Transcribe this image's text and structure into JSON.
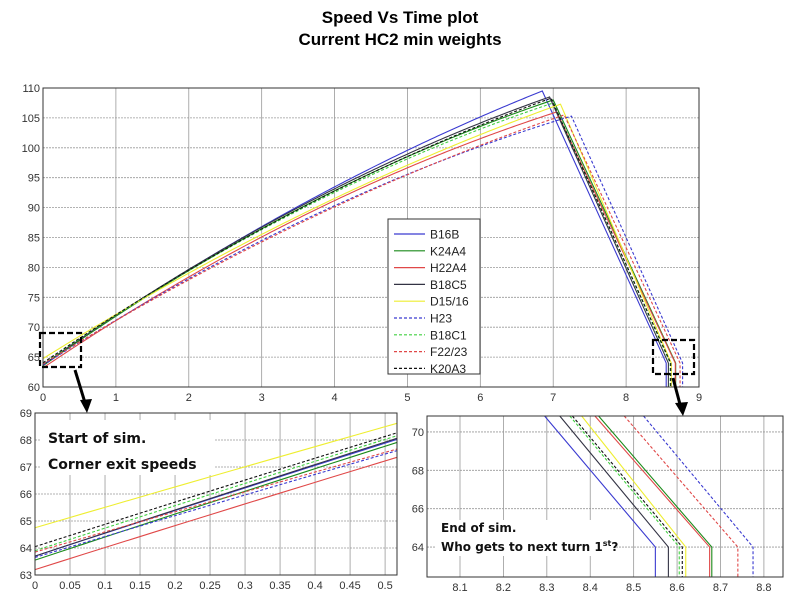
{
  "chart_data": {
    "type": "line",
    "title": "Speed Vs Time plot",
    "subtitle": "Current HC2 min weights",
    "xlabel": "",
    "ylabel": "",
    "grid": true,
    "legend_position": "center",
    "series": [
      {
        "name": "B16B",
        "color": "#3a3ad0",
        "style": "solid",
        "v0": 63.7,
        "a0": 8.5,
        "peak_t": 6.85,
        "peak_v": 109.5,
        "end_t": 8.55
      },
      {
        "name": "K24A4",
        "color": "#1a8a1a",
        "style": "solid",
        "v0": 63.55,
        "a0": 8.6,
        "peak_t": 7.0,
        "peak_v": 108.0,
        "end_t": 8.68
      },
      {
        "name": "H22A4",
        "color": "#e04848",
        "style": "solid",
        "v0": 63.2,
        "a0": 8.2,
        "peak_t": 7.05,
        "peak_v": 106.0,
        "end_t": 8.675
      },
      {
        "name": "B18C5",
        "color": "#333344",
        "style": "solid",
        "v0": 63.7,
        "a0": 8.6,
        "peak_t": 6.95,
        "peak_v": 108.5,
        "end_t": 8.58
      },
      {
        "name": "D15/16",
        "color": "#eeee30",
        "style": "solid",
        "v0": 64.75,
        "a0": 7.6,
        "peak_t": 7.1,
        "peak_v": 107.3,
        "end_t": 8.62
      },
      {
        "name": "H23",
        "color": "#3a3ad0",
        "style": "dotted",
        "v0": 63.65,
        "a0": 7.8,
        "peak_t": 7.25,
        "peak_v": 105.3,
        "end_t": 8.775
      },
      {
        "name": "B18C1",
        "color": "#40d040",
        "style": "dotted",
        "v0": 63.9,
        "a0": 8.4,
        "peak_t": 7.0,
        "peak_v": 107.5,
        "end_t": 8.605
      },
      {
        "name": "F22/23",
        "color": "#e04848",
        "style": "dotted",
        "v0": 63.85,
        "a0": 7.5,
        "peak_t": 7.15,
        "peak_v": 105.5,
        "end_t": 8.74
      },
      {
        "name": "K20A3",
        "color": "#111111",
        "style": "dotted",
        "v0": 64.05,
        "a0": 8.3,
        "peak_t": 6.97,
        "peak_v": 108.3,
        "end_t": 8.612
      }
    ],
    "end_speed": 64,
    "panels": [
      {
        "name": "main",
        "xlim": [
          0,
          9
        ],
        "ylim": [
          60,
          110
        ],
        "xticks": [
          "0",
          "1",
          "2",
          "3",
          "4",
          "5",
          "6",
          "7",
          "8",
          "9"
        ],
        "yticks": [
          "60",
          "65",
          "70",
          "75",
          "80",
          "85",
          "90",
          "95",
          "100",
          "105",
          "110"
        ]
      },
      {
        "name": "start-zoom",
        "xlim": [
          0,
          0.517
        ],
        "ylim": [
          63,
          69
        ],
        "xticks": [
          "0",
          "0.05",
          "0.1",
          "0.15",
          "0.2",
          "0.25",
          "0.3",
          "0.35",
          "0.4",
          "0.45",
          "0.5"
        ],
        "yticks": [
          "63",
          "64",
          "65",
          "66",
          "67",
          "68",
          "69"
        ]
      },
      {
        "name": "end-zoom",
        "xlim": [
          8.024,
          8.844
        ],
        "ylim": [
          62.44,
          70.83
        ],
        "xticks": [
          "8.1",
          "8.2",
          "8.3",
          "8.4",
          "8.5",
          "8.6",
          "8.7",
          "8.8"
        ],
        "yticks": [
          "64",
          "66",
          "68",
          "70"
        ]
      }
    ],
    "annotations": {
      "start_line1": "Start of sim.",
      "start_line2": "Corner exit speeds",
      "end_line1": "End of sim.",
      "end_line2_main": "Who gets to next turn 1",
      "end_line2_sup": "st",
      "end_line2_tail": "?"
    }
  }
}
